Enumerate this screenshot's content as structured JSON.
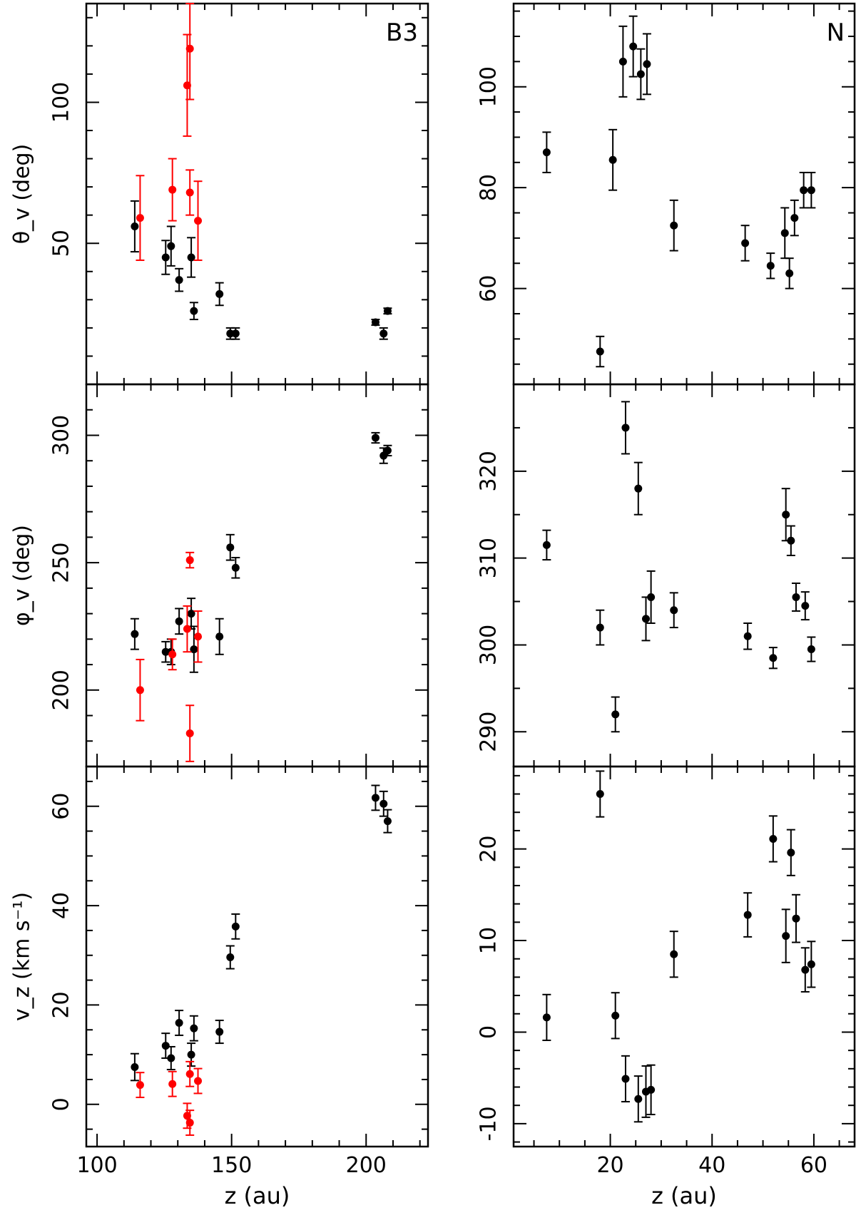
{
  "chart_data": [
    {
      "type": "scatter",
      "panel_label": "B3",
      "ylabel": "θ_v (deg)",
      "xlabel": "",
      "xlim": [
        96,
        223
      ],
      "ylim": [
        0,
        135
      ],
      "yticks_major": [
        50,
        100
      ],
      "yticks_minor_step": 10,
      "xticks_major": [
        100,
        150,
        200
      ],
      "xticks_minor_step": 10,
      "x_ticklabels": false,
      "series": [
        {
          "color": "#000000",
          "points": [
            {
              "x": 114,
              "y": 56,
              "err": 9
            },
            {
              "x": 125.5,
              "y": 45,
              "err": 6
            },
            {
              "x": 127.5,
              "y": 49,
              "err": 7
            },
            {
              "x": 130.5,
              "y": 37,
              "err": 4
            },
            {
              "x": 135,
              "y": 45,
              "err": 7
            },
            {
              "x": 136,
              "y": 26,
              "err": 3
            },
            {
              "x": 145.5,
              "y": 32,
              "err": 4
            },
            {
              "x": 149.5,
              "y": 18,
              "err": 2
            },
            {
              "x": 151.5,
              "y": 18,
              "err": 2
            },
            {
              "x": 203.5,
              "y": 22,
              "err": 1
            },
            {
              "x": 206.5,
              "y": 18,
              "err": 2
            },
            {
              "x": 208,
              "y": 26,
              "err": 1
            }
          ]
        },
        {
          "color": "#ff0000",
          "points": [
            {
              "x": 116,
              "y": 59,
              "err": 15
            },
            {
              "x": 128,
              "y": 69,
              "err": 11
            },
            {
              "x": 133.5,
              "y": 106,
              "err": 18
            },
            {
              "x": 134.5,
              "y": 119,
              "err": 18
            },
            {
              "x": 134.5,
              "y": 68,
              "err": 8
            },
            {
              "x": 137.5,
              "y": 58,
              "err": 14
            }
          ]
        }
      ]
    },
    {
      "type": "scatter",
      "panel_label": "N",
      "ylabel": "",
      "xlabel": "",
      "xlim": [
        1,
        68
      ],
      "ylim": [
        41,
        116.5
      ],
      "yticks_major": [
        60,
        80,
        100
      ],
      "yticks_minor_step": 5,
      "xticks_major": [
        20,
        40,
        60
      ],
      "xticks_minor_step": 5,
      "x_ticklabels": false,
      "series": [
        {
          "color": "#000000",
          "points": [
            {
              "x": 7.5,
              "y": 87,
              "err": 4
            },
            {
              "x": 18,
              "y": 47.5,
              "err": 3
            },
            {
              "x": 20.5,
              "y": 85.5,
              "err": 6
            },
            {
              "x": 22.5,
              "y": 105,
              "err": 7
            },
            {
              "x": 24.5,
              "y": 108,
              "err": 6
            },
            {
              "x": 26,
              "y": 102.5,
              "err": 5
            },
            {
              "x": 27.2,
              "y": 104.5,
              "err": 6
            },
            {
              "x": 32.5,
              "y": 72.5,
              "err": 5
            },
            {
              "x": 46.5,
              "y": 69,
              "err": 3.5
            },
            {
              "x": 51.5,
              "y": 64.5,
              "err": 2.5
            },
            {
              "x": 54.3,
              "y": 71,
              "err": 5
            },
            {
              "x": 55.2,
              "y": 63,
              "err": 3
            },
            {
              "x": 56.2,
              "y": 74,
              "err": 3.5
            },
            {
              "x": 58,
              "y": 79.5,
              "err": 3.5
            },
            {
              "x": 59.5,
              "y": 79.5,
              "err": 3.5
            }
          ]
        }
      ]
    },
    {
      "type": "scatter",
      "panel_label": "",
      "ylabel": "φ_v (deg)",
      "xlabel": "",
      "xlim": [
        96,
        223
      ],
      "ylim": [
        170,
        320
      ],
      "yticks_major": [
        200,
        250,
        300
      ],
      "yticks_minor_step": 10,
      "xticks_major": [
        100,
        150,
        200
      ],
      "xticks_minor_step": 10,
      "x_ticklabels": false,
      "series": [
        {
          "color": "#000000",
          "points": [
            {
              "x": 114,
              "y": 222,
              "err": 6
            },
            {
              "x": 125.5,
              "y": 215,
              "err": 4
            },
            {
              "x": 127.5,
              "y": 215,
              "err": 5
            },
            {
              "x": 130.5,
              "y": 227,
              "err": 5
            },
            {
              "x": 135,
              "y": 230,
              "err": 6
            },
            {
              "x": 136,
              "y": 216,
              "err": 9
            },
            {
              "x": 145.5,
              "y": 221,
              "err": 7
            },
            {
              "x": 149.5,
              "y": 256,
              "err": 5
            },
            {
              "x": 151.5,
              "y": 248,
              "err": 4
            },
            {
              "x": 203.5,
              "y": 299,
              "err": 2
            },
            {
              "x": 206.5,
              "y": 292,
              "err": 3
            },
            {
              "x": 208,
              "y": 294,
              "err": 2
            }
          ]
        },
        {
          "color": "#ff0000",
          "points": [
            {
              "x": 116,
              "y": 200,
              "err": 12
            },
            {
              "x": 128,
              "y": 214,
              "err": 6
            },
            {
              "x": 133.5,
              "y": 224,
              "err": 9
            },
            {
              "x": 134.5,
              "y": 251,
              "err": 3
            },
            {
              "x": 134.5,
              "y": 183,
              "err": 11
            },
            {
              "x": 137.5,
              "y": 221,
              "err": 10
            }
          ]
        }
      ]
    },
    {
      "type": "scatter",
      "panel_label": "",
      "ylabel": "",
      "xlabel": "",
      "xlim": [
        1,
        68
      ],
      "ylim": [
        286,
        330
      ],
      "yticks_major": [
        290,
        300,
        310,
        320
      ],
      "yticks_minor_step": 5,
      "xticks_major": [
        20,
        40,
        60
      ],
      "xticks_minor_step": 5,
      "x_ticklabels": false,
      "series": [
        {
          "color": "#000000",
          "points": [
            {
              "x": 7.5,
              "y": 311.5,
              "err": 1.7
            },
            {
              "x": 18,
              "y": 302,
              "err": 2
            },
            {
              "x": 21,
              "y": 292,
              "err": 2
            },
            {
              "x": 23,
              "y": 325,
              "err": 3
            },
            {
              "x": 25.5,
              "y": 318,
              "err": 3
            },
            {
              "x": 27,
              "y": 303,
              "err": 2.5
            },
            {
              "x": 28,
              "y": 305.5,
              "err": 3
            },
            {
              "x": 32.5,
              "y": 304,
              "err": 2
            },
            {
              "x": 47,
              "y": 301,
              "err": 1.5
            },
            {
              "x": 52,
              "y": 298.5,
              "err": 1.2
            },
            {
              "x": 54.5,
              "y": 315,
              "err": 3
            },
            {
              "x": 55.5,
              "y": 312,
              "err": 1.7
            },
            {
              "x": 56.5,
              "y": 305.5,
              "err": 1.6
            },
            {
              "x": 58.3,
              "y": 304.5,
              "err": 1.6
            },
            {
              "x": 59.5,
              "y": 299.5,
              "err": 1.4
            }
          ]
        }
      ]
    },
    {
      "type": "scatter",
      "panel_label": "",
      "ylabel": "v_z (km s⁻¹)",
      "xlabel": "z (au)",
      "xlim": [
        96,
        223
      ],
      "ylim": [
        -8.5,
        68
      ],
      "yticks_major": [
        0,
        20,
        40,
        60
      ],
      "yticks_minor_step": 5,
      "xticks_major": [
        100,
        150,
        200
      ],
      "xticks_minor_step": 10,
      "x_ticklabels": true,
      "series": [
        {
          "color": "#000000",
          "points": [
            {
              "x": 114,
              "y": 7.5,
              "err": 2.7
            },
            {
              "x": 125.5,
              "y": 11.8,
              "err": 2.5
            },
            {
              "x": 127.5,
              "y": 9.3,
              "err": 2.3
            },
            {
              "x": 130.5,
              "y": 16.4,
              "err": 2.5
            },
            {
              "x": 135,
              "y": 10,
              "err": 2.3
            },
            {
              "x": 136,
              "y": 15.3,
              "err": 2.5
            },
            {
              "x": 145.5,
              "y": 14.6,
              "err": 2.3
            },
            {
              "x": 149.5,
              "y": 29.6,
              "err": 2.3
            },
            {
              "x": 151.5,
              "y": 35.8,
              "err": 2.5
            },
            {
              "x": 203.5,
              "y": 61.7,
              "err": 2.5
            },
            {
              "x": 206.5,
              "y": 60.5,
              "err": 2.5
            },
            {
              "x": 208,
              "y": 57,
              "err": 2.3
            }
          ]
        },
        {
          "color": "#ff0000",
          "points": [
            {
              "x": 116,
              "y": 3.9,
              "err": 2.5
            },
            {
              "x": 128,
              "y": 4.1,
              "err": 2.5
            },
            {
              "x": 133.5,
              "y": -2.3,
              "err": 2.5
            },
            {
              "x": 134.5,
              "y": 6.1,
              "err": 2.5
            },
            {
              "x": 134.5,
              "y": -3.7,
              "err": 2.5
            },
            {
              "x": 137.5,
              "y": 4.7,
              "err": 2.5
            }
          ]
        }
      ]
    },
    {
      "type": "scatter",
      "panel_label": "",
      "ylabel": "",
      "xlabel": "z (au)",
      "xlim": [
        1,
        68
      ],
      "ylim": [
        -12.5,
        29
      ],
      "yticks_major": [
        -10,
        0,
        10,
        20
      ],
      "yticks_minor_step": 2,
      "xticks_major": [
        20,
        40,
        60
      ],
      "xticks_minor_step": 5,
      "x_ticklabels": true,
      "series": [
        {
          "color": "#000000",
          "points": [
            {
              "x": 7.5,
              "y": 1.6,
              "err": 2.5
            },
            {
              "x": 18,
              "y": 26,
              "err": 2.5
            },
            {
              "x": 21,
              "y": 1.8,
              "err": 2.5
            },
            {
              "x": 23,
              "y": -5.1,
              "err": 2.5
            },
            {
              "x": 25.5,
              "y": -7.3,
              "err": 2.5
            },
            {
              "x": 27,
              "y": -6.5,
              "err": 2.8
            },
            {
              "x": 28,
              "y": -6.3,
              "err": 2.7
            },
            {
              "x": 32.5,
              "y": 8.5,
              "err": 2.5
            },
            {
              "x": 47,
              "y": 12.8,
              "err": 2.4
            },
            {
              "x": 52,
              "y": 21.1,
              "err": 2.5
            },
            {
              "x": 54.5,
              "y": 10.5,
              "err": 2.9
            },
            {
              "x": 55.5,
              "y": 19.6,
              "err": 2.5
            },
            {
              "x": 56.5,
              "y": 12.4,
              "err": 2.6
            },
            {
              "x": 58.3,
              "y": 6.8,
              "err": 2.4
            },
            {
              "x": 59.5,
              "y": 7.4,
              "err": 2.5
            }
          ]
        }
      ]
    }
  ]
}
